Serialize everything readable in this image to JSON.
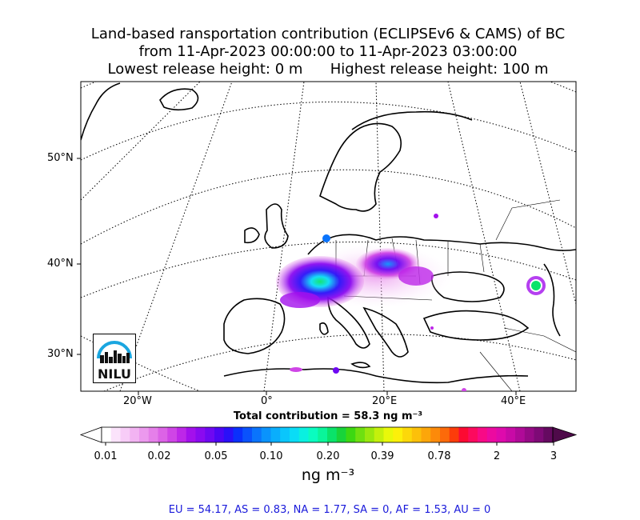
{
  "title": {
    "line1": "Land-based ransportation contribution (ECLIPSEv6 & CAMS) of BC",
    "line2": "from 11-Apr-2023 00:00:00 to 11-Apr-2023 03:00:00",
    "line3": "Lowest release height: 0 m      Highest release height: 100 m"
  },
  "map": {
    "lat_labels": [
      "50°N",
      "40°N",
      "30°N"
    ],
    "lon_labels": [
      "20°W",
      "0°",
      "20°E",
      "40°E"
    ],
    "logo_text": "NILU",
    "land_line_color": "#000000",
    "graticule_style": "dotted"
  },
  "total_label": "Total contribution = 58.3 ng m⁻³",
  "colorbar": {
    "ticks": [
      "0.01",
      "0.02",
      "0.05",
      "0.10",
      "0.20",
      "0.39",
      "0.78",
      "2",
      "3"
    ],
    "unit": "ng m⁻³",
    "colors": [
      "#ffffff",
      "#fbe3fb",
      "#f7ccf7",
      "#f2b3f2",
      "#ec99ee",
      "#e57fe9",
      "#dc63e6",
      "#cf45e6",
      "#bd27e8",
      "#a310ec",
      "#8a0af0",
      "#6e08f2",
      "#4d06f4",
      "#2a10f8",
      "#0a30fc",
      "#0a52fc",
      "#0a74fc",
      "#0a93fc",
      "#0aaefc",
      "#0ac6fc",
      "#0adcf6",
      "#0af0e0",
      "#0afcc0",
      "#0af59a",
      "#0ae36a",
      "#18d43a",
      "#3cd812",
      "#6ee010",
      "#9ae80e",
      "#c4f00c",
      "#e8f80a",
      "#fcf00a",
      "#fcd80a",
      "#fcc00a",
      "#fca60a",
      "#fc8a0a",
      "#fc6a0a",
      "#fc3c0a",
      "#fc0a32",
      "#fc0a5e",
      "#f80a86",
      "#ec0aa0",
      "#de0aac",
      "#c80aa6",
      "#b00a98",
      "#960a86",
      "#7e0a76",
      "#650a60"
    ],
    "under_color": "#ffffff",
    "over_color": "#4f0a4a"
  },
  "regions": "EU = 54.17,  AS = 0.83,  NA = 1.77,  SA = 0,  AF = 1.53,  AU = 0"
}
